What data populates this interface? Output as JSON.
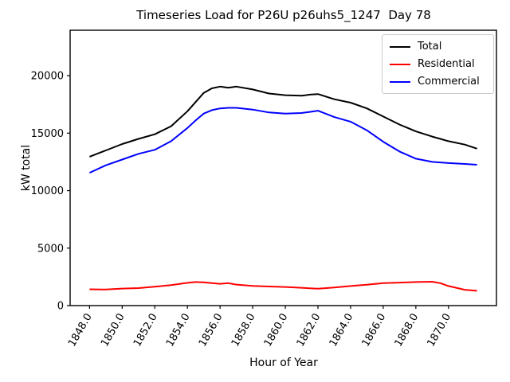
{
  "figure": {
    "title": "Timeseries Load for P26U p26uhs5_1247  Day 78",
    "xlabel": "Hour of Year",
    "ylabel": "kW total"
  },
  "legend": {
    "position": "upper-right",
    "entries": [
      {
        "label": "Total",
        "color": "#000000"
      },
      {
        "label": "Residential",
        "color": "#ff0000"
      },
      {
        "label": "Commercial",
        "color": "#0000ff"
      }
    ]
  },
  "chart_data": {
    "type": "line",
    "title": "Timeseries Load for P26U p26uhs5_1247  Day 78",
    "xlabel": "Hour of Year",
    "ylabel": "kW total",
    "grid": false,
    "legend_position": "upper-right",
    "xlim": [
      1846.81,
      1872.94
    ],
    "ylim": [
      0,
      23950
    ],
    "x_ticks": [
      1848,
      1850,
      1852,
      1854,
      1856,
      1858,
      1860,
      1862,
      1864,
      1866,
      1868,
      1870
    ],
    "x_tick_labels": [
      "1848.0",
      "1850.0",
      "1852.0",
      "1854.0",
      "1856.0",
      "1858.0",
      "1860.0",
      "1862.0",
      "1864.0",
      "1866.0",
      "1868.0",
      "1870.0"
    ],
    "y_ticks": [
      0,
      5000,
      10000,
      15000,
      20000
    ],
    "y_tick_labels": [
      "0",
      "5000",
      "10000",
      "15000",
      "20000"
    ],
    "x": [
      1848,
      1849,
      1850,
      1851,
      1852,
      1853,
      1854,
      1854.5,
      1855,
      1855.5,
      1856,
      1856.5,
      1857,
      1858,
      1859,
      1860,
      1861,
      1861.5,
      1862,
      1863,
      1864,
      1865,
      1866,
      1867,
      1868,
      1869,
      1869.5,
      1870,
      1871,
      1871.75
    ],
    "series": [
      {
        "name": "Total",
        "color": "#000000",
        "values": [
          12950,
          13500,
          14050,
          14500,
          14900,
          15600,
          16900,
          17700,
          18500,
          18900,
          19050,
          18950,
          19050,
          18800,
          18450,
          18300,
          18250,
          18350,
          18400,
          17950,
          17650,
          17150,
          16450,
          15750,
          15150,
          14700,
          14500,
          14300,
          14000,
          13650
        ]
      },
      {
        "name": "Residential",
        "color": "#ff0000",
        "values": [
          1420,
          1400,
          1480,
          1520,
          1650,
          1780,
          1980,
          2050,
          2020,
          1950,
          1900,
          1950,
          1830,
          1720,
          1660,
          1620,
          1550,
          1500,
          1470,
          1580,
          1700,
          1820,
          1950,
          2000,
          2050,
          2080,
          1950,
          1700,
          1380,
          1290
        ]
      },
      {
        "name": "Commercial",
        "color": "#0000ff",
        "values": [
          11550,
          12200,
          12700,
          13200,
          13550,
          14300,
          15450,
          16100,
          16700,
          17000,
          17150,
          17200,
          17200,
          17050,
          16800,
          16700,
          16750,
          16850,
          16950,
          16400,
          16000,
          15250,
          14250,
          13400,
          12780,
          12500,
          12450,
          12400,
          12320,
          12250
        ]
      }
    ]
  }
}
